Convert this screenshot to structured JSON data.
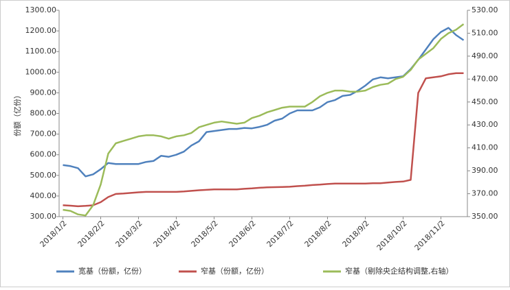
{
  "chart_data": {
    "type": "line",
    "y_label": "份额（亿份）",
    "categories": [
      "2018/1/2",
      null,
      null,
      null,
      null,
      "2018/2/2",
      null,
      null,
      null,
      null,
      "2018/3/2",
      null,
      null,
      null,
      null,
      "2018/4/2",
      null,
      null,
      null,
      null,
      "2018/5/2",
      null,
      null,
      null,
      null,
      "2018/6/2",
      null,
      null,
      null,
      null,
      "2018/7/2",
      null,
      null,
      null,
      null,
      "2018/8/2",
      null,
      null,
      null,
      null,
      "2018/9/2",
      null,
      null,
      null,
      null,
      "2018/10/2",
      null,
      null,
      null,
      null,
      "2018/11/2",
      null,
      null,
      null
    ],
    "series": [
      {
        "name": "宽基（份额，亿份）",
        "color": "#4f81bd",
        "values": [
          550,
          545,
          535,
          495,
          505,
          530,
          560,
          555,
          555,
          555,
          555,
          565,
          570,
          595,
          590,
          600,
          615,
          645,
          665,
          710,
          715,
          720,
          725,
          725,
          730,
          728,
          735,
          745,
          765,
          775,
          800,
          815,
          815,
          815,
          830,
          855,
          865,
          885,
          890,
          910,
          935,
          965,
          975,
          970,
          975,
          980,
          1015,
          1060,
          1110,
          1160,
          1195,
          1215,
          1180,
          1155
        ]
      },
      {
        "name": "窄基（份额，亿份）",
        "color": "#c0504d",
        "values": [
          355,
          353,
          350,
          352,
          355,
          370,
          395,
          410,
          412,
          415,
          418,
          420,
          420,
          420,
          420,
          420,
          422,
          425,
          428,
          430,
          432,
          432,
          432,
          432,
          435,
          437,
          440,
          442,
          443,
          444,
          445,
          448,
          450,
          453,
          455,
          458,
          460,
          460,
          460,
          460,
          460,
          462,
          462,
          465,
          468,
          470,
          478,
          900,
          970,
          975,
          980,
          990,
          995,
          995
        ]
      },
      {
        "name": "窄基（剔除央企结构调整,右轴）",
        "color": "#9bbb59",
        "axis": "y2",
        "values": [
          356,
          355,
          352,
          351,
          360,
          378,
          405,
          414,
          416,
          418,
          420,
          421,
          421,
          420,
          418,
          420,
          421,
          423,
          428,
          430,
          432,
          433,
          432,
          431,
          432,
          436,
          438,
          441,
          443,
          445,
          446,
          446,
          446,
          450,
          455,
          458,
          460,
          460,
          459,
          459,
          460,
          463,
          465,
          466,
          470,
          472,
          478,
          487,
          492,
          497,
          505,
          510,
          513,
          518
        ]
      }
    ],
    "ylim": [
      300,
      1300
    ],
    "yticks": [
      {
        "value": 300,
        "label": "300.00"
      },
      {
        "value": 400,
        "label": "400.00"
      },
      {
        "value": 500,
        "label": "500.00"
      },
      {
        "value": 600,
        "label": "600.00"
      },
      {
        "value": 700,
        "label": "700.00"
      },
      {
        "value": 800,
        "label": "800.00"
      },
      {
        "value": 900,
        "label": "900.00"
      },
      {
        "value": 1000,
        "label": "1000.00"
      },
      {
        "value": 1100,
        "label": "1100.00"
      },
      {
        "value": 1200,
        "label": "1200.00"
      },
      {
        "value": 1300,
        "label": "1300.00"
      }
    ],
    "y2lim": [
      350,
      530
    ],
    "y2ticks": [
      {
        "value": 350,
        "label": "350.00"
      },
      {
        "value": 370,
        "label": "370.00"
      },
      {
        "value": 390,
        "label": "390.00"
      },
      {
        "value": 410,
        "label": "410.00"
      },
      {
        "value": 430,
        "label": "430.00"
      },
      {
        "value": 450,
        "label": "450.00"
      },
      {
        "value": 470,
        "label": "470.00"
      },
      {
        "value": 490,
        "label": "490.00"
      },
      {
        "value": 510,
        "label": "510.00"
      },
      {
        "value": 530,
        "label": "530.00"
      }
    ],
    "legend": "bottom"
  }
}
